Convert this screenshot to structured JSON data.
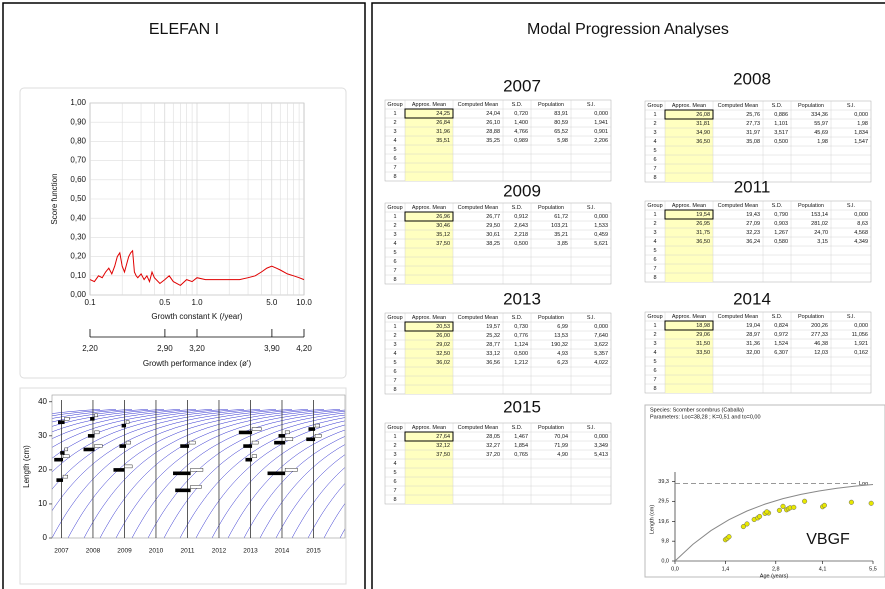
{
  "left_title": "ELEFAN I",
  "right_title": "Modal Progression Analyses",
  "chart_data": [
    {
      "type": "line",
      "x_label": "Growth constant K (/year)",
      "y_label": "Score function",
      "log_x": true,
      "x": [
        0.1,
        0.11,
        0.12,
        0.13,
        0.14,
        0.15,
        0.16,
        0.17,
        0.18,
        0.19,
        0.2,
        0.21,
        0.22,
        0.23,
        0.24,
        0.25,
        0.26,
        0.27,
        0.28,
        0.3,
        0.32,
        0.34,
        0.36,
        0.38,
        0.4,
        0.45,
        0.5,
        0.55,
        0.6,
        0.7,
        0.8,
        0.9,
        1.0,
        1.2,
        1.5,
        2,
        2.5,
        3,
        3.5,
        4,
        4.5,
        5,
        5.5,
        6,
        7,
        8,
        9,
        10
      ],
      "values": [
        0.08,
        0.07,
        0.1,
        0.09,
        0.12,
        0.14,
        0.11,
        0.15,
        0.2,
        0.22,
        0.15,
        0.12,
        0.16,
        0.2,
        0.22,
        0.23,
        0.12,
        0.1,
        0.09,
        0.11,
        0.08,
        0.1,
        0.07,
        0.12,
        0.09,
        0.06,
        0.08,
        0.1,
        0.07,
        0.05,
        0.08,
        0.07,
        0.09,
        0.08,
        0.08,
        0.08,
        0.08,
        0.09,
        0.1,
        0.12,
        0.14,
        0.15,
        0.14,
        0.13,
        0.11,
        0.1,
        0.09,
        0.08
      ],
      "color": "#e00000",
      "xlim": [
        0.1,
        10
      ],
      "ylim": [
        0,
        1
      ],
      "xticks": [
        0.1,
        0.5,
        {
          "value": 1,
          "label": "1.0"
        },
        {
          "value": 5,
          "label": "5.0"
        },
        {
          "value": 10,
          "label": "10.0"
        }
      ],
      "x_minor_ticks": [
        0.2,
        0.3,
        0.4,
        0.6,
        0.7,
        0.8,
        0.9,
        2,
        3,
        4,
        6,
        7,
        8,
        9
      ],
      "yticks": [
        {
          "value": 0,
          "label": "0,00"
        },
        {
          "value": 0.1,
          "label": "0,10"
        },
        {
          "value": 0.2,
          "label": "0,20"
        },
        {
          "value": 0.3,
          "label": "0,30"
        },
        {
          "value": 0.4,
          "label": "0,40"
        },
        {
          "value": 0.5,
          "label": "0,50"
        },
        {
          "value": 0.6,
          "label": "0,60"
        },
        {
          "value": 0.7,
          "label": "0,70"
        },
        {
          "value": 0.8,
          "label": "0,80"
        },
        {
          "value": 0.9,
          "label": "0,90"
        },
        {
          "value": 1,
          "label": "1,00"
        }
      ],
      "grid": true,
      "x2_label": "Growth performance index (ø')",
      "x2lim": [
        2.2,
        4.2
      ],
      "x2ticks": [
        {
          "value": 2.2,
          "label": "2,20"
        },
        {
          "value": 2.9,
          "label": "2,90"
        },
        {
          "value": 3.2,
          "label": "3,20"
        },
        {
          "value": 3.9,
          "label": "3,90"
        },
        {
          "value": 4.2,
          "label": "4,20"
        }
      ]
    },
    {
      "type": "scatter",
      "y_label": "Length (cm)",
      "xlim": [
        2006.7,
        2016
      ],
      "ylim": [
        0,
        42
      ],
      "yticks": [
        0,
        10,
        20,
        30,
        40
      ],
      "xticks": [
        2007,
        2008,
        2009,
        2010,
        2011,
        2012,
        2013,
        2014,
        2015
      ],
      "color": "#000000",
      "curve_color": "#3030d0",
      "x": [
        2007.05,
        2007.05,
        2007.1,
        2007.1,
        2008.05,
        2008.05,
        2008.05,
        2009.0,
        2009.05,
        2009.05,
        2011.1,
        2011.1,
        2011.05,
        2013.05,
        2013.05,
        2013.05,
        2014.1,
        2014.1,
        2014.1,
        2015.05,
        2015.05
      ],
      "values": [
        17,
        23,
        25,
        34,
        26,
        30,
        35,
        20,
        27,
        33,
        14,
        19,
        27,
        23,
        27,
        31,
        19,
        28,
        30,
        29,
        32
      ],
      "sizes": [
        3,
        4,
        2,
        3,
        5,
        3,
        2,
        5,
        3,
        2,
        7,
        8,
        4,
        3,
        4,
        6,
        8,
        5,
        3,
        4,
        3
      ]
    },
    {
      "type": "scatter",
      "title": "Species: Scomber scombrus (Caballa)",
      "subtitle": "Parameters: Loo=38,28 ; K=0,51 and to=0,00",
      "x_label": "Age (years)",
      "y_label": "Length (cm)",
      "annotation": "Loo",
      "big_label": "VBGF",
      "asymptote": 38.28,
      "xlim": [
        0,
        5.5
      ],
      "ylim": [
        0,
        41
      ],
      "xticks": [
        {
          "value": 0,
          "label": "0,0"
        },
        {
          "value": 1.4,
          "label": "1,4"
        },
        {
          "value": 2.8,
          "label": "2,8"
        },
        {
          "value": 4.1,
          "label": "4,1"
        },
        {
          "value": 5.5,
          "label": "5,5"
        }
      ],
      "yticks": [
        {
          "value": 0,
          "label": "0,0"
        },
        {
          "value": 9.8,
          "label": "9,8"
        },
        {
          "value": 19.6,
          "label": "19,6"
        },
        {
          "value": 29.5,
          "label": "29,5"
        },
        {
          "value": 39.3,
          "label": "39,3"
        }
      ],
      "x": [
        1.4,
        1.45,
        1.5,
        1.9,
        2.0,
        2.2,
        2.3,
        2.35,
        2.5,
        2.6,
        2.55,
        2.9,
        3.1,
        3.15,
        3.2,
        3.3,
        3.0,
        3.6,
        4.1,
        4.15,
        4.9,
        5.45
      ],
      "values": [
        10.5,
        11.2,
        12,
        17,
        18.3,
        20.5,
        21.3,
        22,
        23.5,
        23.7,
        24.3,
        25,
        25.3,
        25.8,
        26.3,
        26.5,
        27,
        29.5,
        26.8,
        27.5,
        29,
        28.5
      ],
      "color": "#e8e800",
      "curve": {
        "x": [
          0,
          0.5,
          1,
          1.5,
          2,
          2.5,
          3,
          3.5,
          4,
          4.5,
          5,
          5.5
        ],
        "values": [
          0,
          8.3,
          15,
          20.4,
          24.7,
          28.1,
          30.8,
          32.9,
          34.6,
          35.9,
          37,
          37.8
        ],
        "color": "#888888"
      }
    }
  ],
  "mpa_tables": [
    {
      "year": "2007",
      "header": [
        "Group",
        "Approx. Mean",
        "Computed Mean",
        "S.D.",
        "Population",
        "S.I."
      ],
      "groups": [
        "1",
        "2",
        "3",
        "4",
        "5",
        "6",
        "7",
        "8"
      ],
      "rows": [
        [
          "24,25",
          "24,04",
          "0,720",
          "83,91",
          "0,000"
        ],
        [
          "26,84",
          "26,10",
          "1,400",
          "80,59",
          "1,941"
        ],
        [
          "31,96",
          "28,88",
          "4,766",
          "65,52",
          "0,901"
        ],
        [
          "35,51",
          "35,25",
          "0,989",
          "5,98",
          "2,206"
        ]
      ]
    },
    {
      "year": "2008",
      "header": [
        "Group",
        "Approx. Mean",
        "Computed Mean",
        "S.D.",
        "Population",
        "S.I."
      ],
      "groups": [
        "1",
        "2",
        "3",
        "4",
        "5",
        "6",
        "7",
        "8"
      ],
      "rows": [
        [
          "26,08",
          "25,76",
          "0,886",
          "334,36",
          "0,000"
        ],
        [
          "31,81",
          "27,73",
          "1,101",
          "55,97",
          "1,98"
        ],
        [
          "34,90",
          "31,97",
          "3,517",
          "45,69",
          "1,834"
        ],
        [
          "36,50",
          "35,08",
          "0,500",
          "1,98",
          "1,547"
        ]
      ]
    },
    {
      "year": "2009",
      "header": [
        "Group",
        "Approx. Mean",
        "Computed Mean",
        "S.D.",
        "Population",
        "S.I."
      ],
      "groups": [
        "1",
        "2",
        "3",
        "4",
        "5",
        "6",
        "7",
        "8"
      ],
      "rows": [
        [
          "26,96",
          "26,77",
          "0,912",
          "61,72",
          "0,000"
        ],
        [
          "30,46",
          "29,50",
          "2,643",
          "103,21",
          "1,533"
        ],
        [
          "35,12",
          "30,61",
          "2,218",
          "35,21",
          "0,459"
        ],
        [
          "37,50",
          "38,25",
          "0,500",
          "3,85",
          "5,621"
        ]
      ]
    },
    {
      "year": "2011",
      "header": [
        "Group",
        "Approx. Mean",
        "Computed Mean",
        "S.D.",
        "Population",
        "S.I."
      ],
      "groups": [
        "1",
        "2",
        "3",
        "4",
        "5",
        "6",
        "7",
        "8"
      ],
      "rows": [
        [
          "19,54",
          "19,43",
          "0,790",
          "153,14",
          "0,000"
        ],
        [
          "26,95",
          "27,09",
          "0,903",
          "281,02",
          "8,63"
        ],
        [
          "31,75",
          "32,23",
          "1,267",
          "24,70",
          "4,568"
        ],
        [
          "36,50",
          "36,24",
          "0,580",
          "3,15",
          "4,349"
        ]
      ]
    },
    {
      "year": "2013",
      "header": [
        "Group",
        "Approx. Mean",
        "Computed Mean",
        "S.D.",
        "Population",
        "S.I."
      ],
      "groups": [
        "1",
        "2",
        "3",
        "4",
        "5",
        "6",
        "7",
        "8"
      ],
      "rows": [
        [
          "20,53",
          "19,57",
          "0,730",
          "6,99",
          "0,000"
        ],
        [
          "26,00",
          "25,32",
          "0,776",
          "13,53",
          "7,640"
        ],
        [
          "29,02",
          "28,77",
          "1,124",
          "190,32",
          "3,622"
        ],
        [
          "32,50",
          "33,12",
          "0,500",
          "4,93",
          "5,357"
        ],
        [
          "36,02",
          "36,56",
          "1,212",
          "6,23",
          "4,022"
        ]
      ]
    },
    {
      "year": "2014",
      "header": [
        "Group",
        "Approx. Mean",
        "Computed Mean",
        "S.D.",
        "Population",
        "S.I."
      ],
      "groups": [
        "1",
        "2",
        "3",
        "4",
        "5",
        "6",
        "7",
        "8"
      ],
      "rows": [
        [
          "18,98",
          "19,04",
          "0,824",
          "200,26",
          "0,000"
        ],
        [
          "29,06",
          "28,97",
          "0,972",
          "277,33",
          "11,056"
        ],
        [
          "31,50",
          "31,36",
          "1,524",
          "46,38",
          "1,921"
        ],
        [
          "33,50",
          "32,00",
          "6,307",
          "12,03",
          "0,162"
        ]
      ]
    },
    {
      "year": "2015",
      "header": [
        "Group",
        "Approx. Mean",
        "Computed Mean",
        "S.D.",
        "Population",
        "S.I."
      ],
      "groups": [
        "1",
        "2",
        "3",
        "4",
        "5",
        "6",
        "7",
        "8"
      ],
      "rows": [
        [
          "27,64",
          "28,05",
          "1,467",
          "70,04",
          "0,000"
        ],
        [
          "32,12",
          "32,27",
          "1,854",
          "71,99",
          "3,349"
        ],
        [
          "37,50",
          "37,20",
          "0,765",
          "4,90",
          "5,413"
        ]
      ]
    }
  ]
}
